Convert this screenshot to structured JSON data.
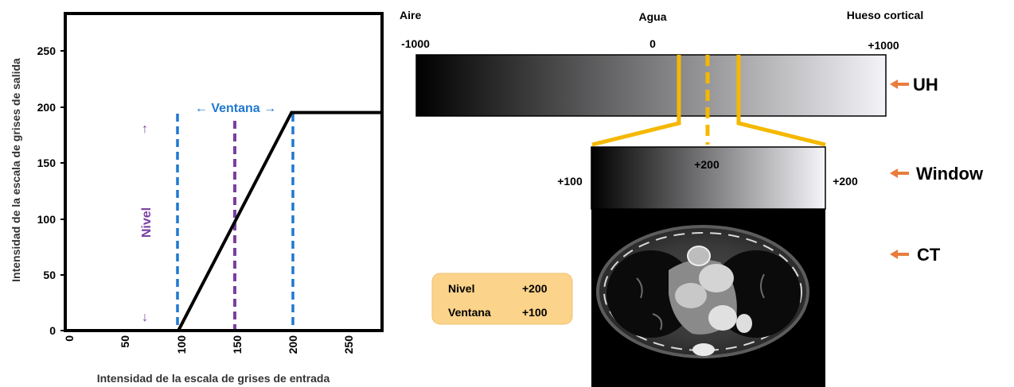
{
  "chart": {
    "type": "line",
    "ylabel": "Intensidad de la escala de grises de salida",
    "xlabel": "Intensidad de la escala de grises de entrada",
    "yticks": [
      "0",
      "50",
      "100",
      "150",
      "200",
      "250"
    ],
    "xticks": [
      "0",
      "50",
      "100",
      "150",
      "200",
      "250"
    ],
    "xlim": [
      0,
      280
    ],
    "ylim": [
      0,
      285
    ],
    "ventana_label": "← Ventana →",
    "nivel_label": "Nivel",
    "up_arrow": "↑",
    "down_arrow": "↓"
  },
  "chart_data": {
    "type": "line",
    "x": [
      0,
      100,
      200,
      280
    ],
    "series": [
      {
        "values": [
          0,
          0,
          196,
          196
        ]
      }
    ],
    "xlabel": "Intensidad de la escala de grises de entrada",
    "ylabel": "Intensidad de la escala de grises de salida",
    "xlim": [
      0,
      280
    ],
    "ylim": [
      0,
      285
    ],
    "window_lines": [
      100,
      200
    ],
    "level_line": 150
  },
  "scale": {
    "labels": {
      "air": "Aire",
      "water": "Agua",
      "bone": "Hueso cortical"
    },
    "values": {
      "min": "-1000",
      "mid": "0",
      "max": "+1000"
    },
    "uh_label": "UH"
  },
  "window": {
    "left_value": "+100",
    "center_value": "+200",
    "right_value": "+200",
    "label": "Window"
  },
  "ct": {
    "label": "CT"
  },
  "info_box": {
    "nivel_label": "Nivel",
    "nivel_value": "+200",
    "ventana_label": "Ventana",
    "ventana_value": "+100"
  },
  "colors": {
    "blue": "#1f78d1",
    "purple": "#7b3fa0",
    "yellow": "#f5b800",
    "orange": "#e87d3e",
    "info_box": "#fbd38a"
  }
}
